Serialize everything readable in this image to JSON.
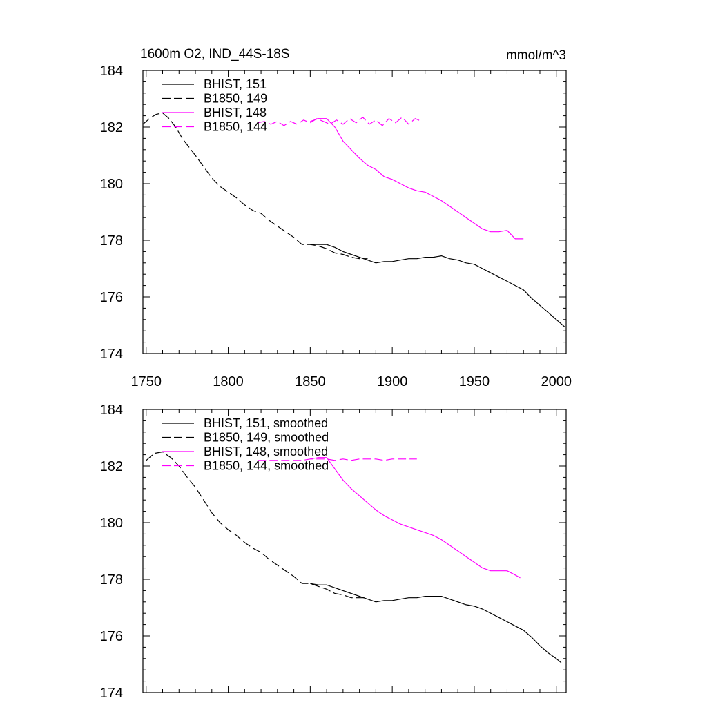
{
  "figure": {
    "title": "1600m O2, IND_44S-18S",
    "units": "mmol/m^3"
  },
  "colors": {
    "black": "#000000",
    "magenta": "#ff00ff"
  },
  "chart_data": [
    {
      "type": "line",
      "title": "1600m O2, IND_44S-18S",
      "units": "mmol/m^3",
      "xlim": [
        1748,
        2006
      ],
      "ylim": [
        174,
        184
      ],
      "x_ticks": [
        1750,
        1800,
        1850,
        1900,
        1950,
        2000
      ],
      "x_tick_labels": [
        "1750",
        "1800",
        "1850",
        "1900",
        "1950",
        "2000"
      ],
      "y_ticks": [
        174,
        176,
        178,
        180,
        182,
        184
      ],
      "y_tick_labels": [
        "174",
        "176",
        "178",
        "180",
        "182",
        "184"
      ],
      "grid": false,
      "legend_position": "top-left",
      "series": [
        {
          "name": "BHIST, 151",
          "color": "#000000",
          "dash": "solid",
          "x": [
            1850,
            1855,
            1860,
            1865,
            1870,
            1875,
            1880,
            1885,
            1890,
            1895,
            1900,
            1905,
            1910,
            1915,
            1920,
            1925,
            1930,
            1935,
            1940,
            1945,
            1950,
            1955,
            1960,
            1965,
            1970,
            1975,
            1980,
            1985,
            1990,
            1995,
            2000,
            2005
          ],
          "y": [
            177.85,
            177.85,
            177.85,
            177.75,
            177.6,
            177.5,
            177.4,
            177.3,
            177.2,
            177.25,
            177.25,
            177.3,
            177.35,
            177.35,
            177.4,
            177.4,
            177.45,
            177.35,
            177.3,
            177.2,
            177.15,
            177.0,
            176.85,
            176.7,
            176.55,
            176.4,
            176.25,
            175.95,
            175.7,
            175.45,
            175.2,
            174.95
          ]
        },
        {
          "name": "B1850, 149",
          "color": "#000000",
          "dash": "dashed",
          "x": [
            1748,
            1752,
            1756,
            1760,
            1764,
            1768,
            1772,
            1776,
            1780,
            1785,
            1790,
            1795,
            1800,
            1805,
            1810,
            1815,
            1820,
            1825,
            1830,
            1835,
            1840,
            1845,
            1850,
            1855,
            1860,
            1865,
            1870,
            1875,
            1880,
            1885
          ],
          "y": [
            182.1,
            182.3,
            182.45,
            182.5,
            182.3,
            182.0,
            181.6,
            181.3,
            181.0,
            180.6,
            180.2,
            179.9,
            179.7,
            179.5,
            179.25,
            179.05,
            178.95,
            178.7,
            178.5,
            178.3,
            178.1,
            177.85,
            177.85,
            177.8,
            177.7,
            177.55,
            177.5,
            177.4,
            177.35,
            177.35
          ]
        },
        {
          "name": "BHIST, 148",
          "color": "#ff00ff",
          "dash": "solid",
          "x": [
            1850,
            1855,
            1860,
            1865,
            1870,
            1875,
            1880,
            1885,
            1890,
            1895,
            1900,
            1905,
            1910,
            1915,
            1920,
            1925,
            1930,
            1935,
            1940,
            1945,
            1950,
            1955,
            1960,
            1965,
            1970,
            1975,
            1980
          ],
          "y": [
            182.2,
            182.3,
            182.3,
            182.0,
            181.5,
            181.2,
            180.9,
            180.65,
            180.5,
            180.25,
            180.15,
            180.0,
            179.85,
            179.75,
            179.7,
            179.55,
            179.4,
            179.2,
            179.0,
            178.8,
            178.6,
            178.4,
            178.3,
            178.3,
            178.35,
            178.05,
            178.05
          ]
        },
        {
          "name": "B1850, 144",
          "color": "#ff00ff",
          "dash": "dashed",
          "x": [
            1818,
            1822,
            1826,
            1830,
            1834,
            1838,
            1842,
            1846,
            1850,
            1854,
            1858,
            1862,
            1866,
            1870,
            1874,
            1878,
            1882,
            1886,
            1890,
            1894,
            1898,
            1902,
            1906,
            1910,
            1914,
            1918
          ],
          "y": [
            182.15,
            182.2,
            182.1,
            182.2,
            182.05,
            182.2,
            182.1,
            182.25,
            182.15,
            182.3,
            182.2,
            182.1,
            182.25,
            182.1,
            182.3,
            182.15,
            182.35,
            182.1,
            182.25,
            182.05,
            182.3,
            182.15,
            182.35,
            182.1,
            182.3,
            182.2
          ]
        }
      ]
    },
    {
      "type": "line",
      "xlim": [
        1748,
        2006
      ],
      "ylim": [
        174,
        184
      ],
      "x_ticks": [
        1750,
        1800,
        1850,
        1900,
        1950,
        2000
      ],
      "y_ticks": [
        174,
        176,
        178,
        180,
        182,
        184
      ],
      "y_tick_labels": [
        "174",
        "176",
        "178",
        "180",
        "182",
        "184"
      ],
      "grid": false,
      "legend_position": "top-left",
      "series": [
        {
          "name": "BHIST, 151, smoothed",
          "color": "#000000",
          "dash": "solid",
          "x": [
            1850,
            1855,
            1860,
            1865,
            1870,
            1875,
            1880,
            1885,
            1890,
            1895,
            1900,
            1905,
            1910,
            1915,
            1920,
            1925,
            1930,
            1935,
            1940,
            1945,
            1950,
            1955,
            1960,
            1965,
            1970,
            1975,
            1980,
            1985,
            1990,
            1995,
            2000,
            2003
          ],
          "y": [
            177.85,
            177.8,
            177.8,
            177.7,
            177.6,
            177.5,
            177.4,
            177.3,
            177.2,
            177.25,
            177.25,
            177.3,
            177.35,
            177.35,
            177.4,
            177.4,
            177.4,
            177.3,
            177.2,
            177.1,
            177.05,
            176.95,
            176.8,
            176.65,
            176.5,
            176.35,
            176.2,
            175.95,
            175.65,
            175.4,
            175.2,
            175.05
          ]
        },
        {
          "name": "B1850, 149, smoothed",
          "color": "#000000",
          "dash": "dashed",
          "x": [
            1750,
            1755,
            1760,
            1765,
            1770,
            1775,
            1780,
            1785,
            1790,
            1795,
            1800,
            1805,
            1810,
            1815,
            1820,
            1825,
            1830,
            1835,
            1840,
            1845,
            1850,
            1855,
            1860,
            1865,
            1870,
            1875,
            1880,
            1885
          ],
          "y": [
            182.2,
            182.45,
            182.5,
            182.3,
            182.0,
            181.6,
            181.25,
            180.8,
            180.35,
            180.0,
            179.75,
            179.55,
            179.3,
            179.1,
            178.95,
            178.7,
            178.5,
            178.3,
            178.1,
            177.85,
            177.85,
            177.75,
            177.65,
            177.5,
            177.45,
            177.35,
            177.35,
            177.35
          ]
        },
        {
          "name": "BHIST, 148, smoothed",
          "color": "#ff00ff",
          "dash": "solid",
          "x": [
            1850,
            1855,
            1860,
            1865,
            1870,
            1875,
            1880,
            1885,
            1890,
            1895,
            1900,
            1905,
            1910,
            1915,
            1920,
            1925,
            1930,
            1935,
            1940,
            1945,
            1950,
            1955,
            1960,
            1965,
            1970,
            1975,
            1978
          ],
          "y": [
            182.25,
            182.3,
            182.3,
            181.9,
            181.5,
            181.2,
            180.95,
            180.7,
            180.45,
            180.25,
            180.1,
            179.95,
            179.85,
            179.75,
            179.65,
            179.55,
            179.4,
            179.2,
            179.0,
            178.8,
            178.6,
            178.4,
            178.3,
            178.3,
            178.3,
            178.15,
            178.05
          ]
        },
        {
          "name": "B1850, 144, smoothed",
          "color": "#ff00ff",
          "dash": "dashed",
          "x": [
            1818,
            1825,
            1830,
            1835,
            1840,
            1845,
            1850,
            1855,
            1860,
            1865,
            1870,
            1875,
            1880,
            1885,
            1890,
            1895,
            1900,
            1905,
            1910,
            1915
          ],
          "y": [
            182.2,
            182.2,
            182.2,
            182.2,
            182.2,
            182.2,
            182.25,
            182.25,
            182.25,
            182.2,
            182.25,
            182.2,
            182.25,
            182.25,
            182.25,
            182.2,
            182.25,
            182.25,
            182.25,
            182.25
          ]
        }
      ]
    }
  ]
}
